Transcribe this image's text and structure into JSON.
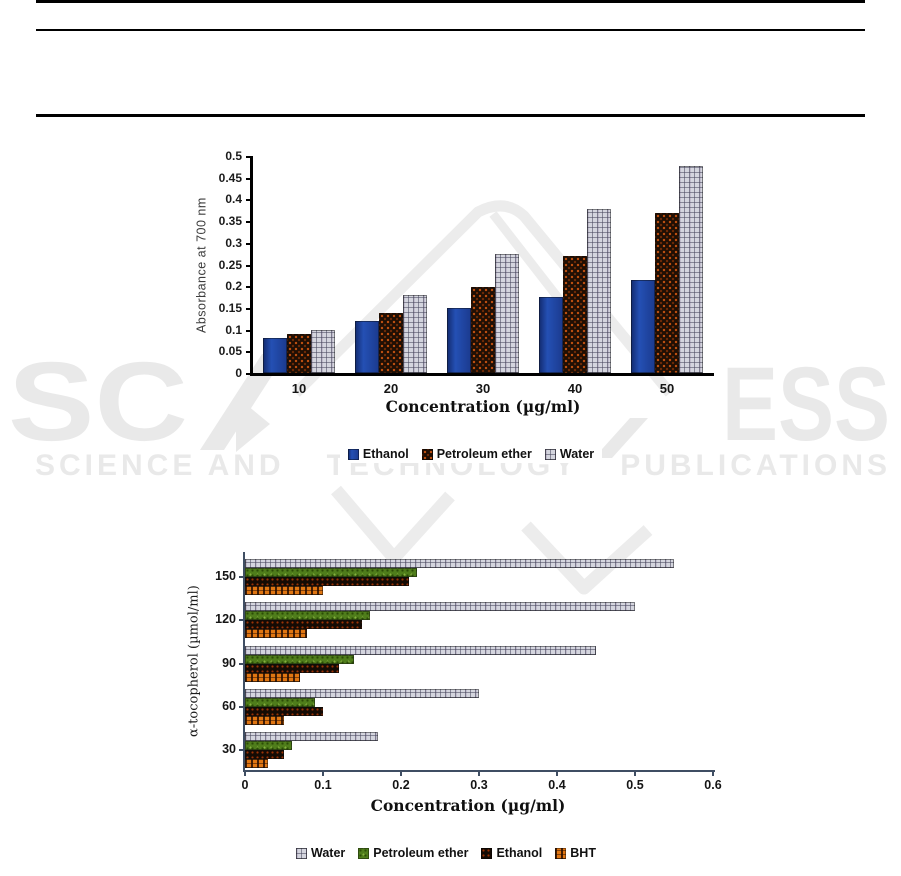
{
  "watermark": {
    "left_letters": "SC",
    "right_letters": "ESS",
    "tagline_left": "SCIENCE AND",
    "tagline_mid": "TECHNOLOGY",
    "tagline_right": "PUBLICATIONS",
    "color": "#e9e9e9"
  },
  "chart_data": [
    {
      "type": "bar",
      "orientation": "vertical",
      "title": "",
      "categories": [
        "10",
        "20",
        "30",
        "40",
        "50"
      ],
      "series": [
        {
          "name": "Ethanol",
          "style": "blue-solid",
          "color": "#1e3f94",
          "values": [
            0.08,
            0.12,
            0.15,
            0.175,
            0.215
          ]
        },
        {
          "name": "Petroleum ether",
          "style": "dark-speckle",
          "color": "#1f0f04",
          "values": [
            0.09,
            0.14,
            0.2,
            0.27,
            0.37
          ]
        },
        {
          "name": "Water",
          "style": "gray-plaid",
          "color": "#d4d5de",
          "values": [
            0.1,
            0.18,
            0.275,
            0.38,
            0.48
          ]
        }
      ],
      "xlabel": "Concentration (µg/ml)",
      "ylabel": "Absorbance at 700 nm",
      "ylim": [
        0,
        0.5
      ],
      "yticks": [
        "0",
        "0.05",
        "0.1",
        "0.15",
        "0.2",
        "0.25",
        "0.3",
        "0.35",
        "0.4",
        "0.45",
        "0.5"
      ],
      "grid": false,
      "legend_position": "bottom"
    },
    {
      "type": "bar",
      "orientation": "horizontal",
      "title": "",
      "categories": [
        "30",
        "60",
        "90",
        "120",
        "150"
      ],
      "series": [
        {
          "name": "Water",
          "style": "gray-plaid",
          "color": "#d4d5de",
          "values": [
            0.17,
            0.3,
            0.45,
            0.5,
            0.55
          ]
        },
        {
          "name": "Petroleum ether",
          "style": "green-speckle",
          "color": "#4f7d1b",
          "values": [
            0.06,
            0.09,
            0.14,
            0.16,
            0.22
          ]
        },
        {
          "name": "Ethanol",
          "style": "black-speckle",
          "color": "#150b04",
          "values": [
            0.05,
            0.1,
            0.12,
            0.15,
            0.21
          ]
        },
        {
          "name": "BHT",
          "style": "orange-hatch",
          "color": "#e07612",
          "values": [
            0.03,
            0.05,
            0.07,
            0.08,
            0.1
          ]
        }
      ],
      "xlabel": "Concentration (µg/ml)",
      "ylabel": "α-tocopherol (µmol/ml)",
      "xlim": [
        0,
        0.6
      ],
      "xticks": [
        "0",
        "0.1",
        "0.2",
        "0.3",
        "0.4",
        "0.5",
        "0.6"
      ],
      "grid": false,
      "legend_position": "bottom"
    }
  ]
}
